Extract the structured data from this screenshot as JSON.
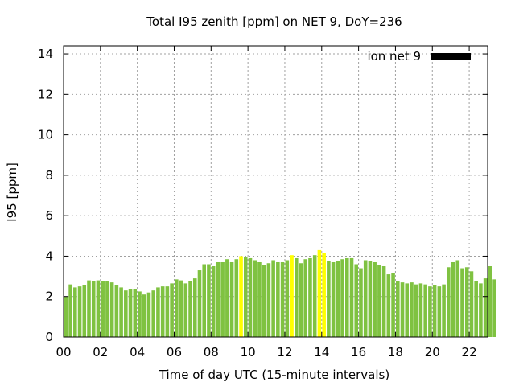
{
  "chart_data": {
    "type": "bar",
    "title": "Total I95 zenith [ppm] on NET 9, DoY=236",
    "xlabel": "Time of day UTC (15-minute intervals)",
    "ylabel": "I95 [ppm]",
    "ylim": [
      0,
      14.4
    ],
    "yticks": [
      0,
      2,
      4,
      6,
      8,
      10,
      12,
      14
    ],
    "xlim": [
      0,
      23
    ],
    "xticks": [
      "00",
      "02",
      "04",
      "06",
      "08",
      "10",
      "12",
      "14",
      "16",
      "18",
      "20",
      "22"
    ],
    "grid": true,
    "legend": {
      "label": "ion net 9",
      "position": "top-right",
      "color": "#000000"
    },
    "colors": {
      "normal": "#7fc241",
      "highlight": "#ffff00"
    },
    "bin_hours": 0.25,
    "highlighted_bins": [
      38,
      49,
      55,
      56
    ],
    "values": [
      2.0,
      2.6,
      2.45,
      2.5,
      2.55,
      2.8,
      2.75,
      2.8,
      2.75,
      2.75,
      2.7,
      2.55,
      2.45,
      2.3,
      2.35,
      2.35,
      2.25,
      2.1,
      2.2,
      2.3,
      2.45,
      2.5,
      2.5,
      2.65,
      2.85,
      2.8,
      2.65,
      2.75,
      2.9,
      3.3,
      3.6,
      3.6,
      3.5,
      3.7,
      3.7,
      3.85,
      3.7,
      3.85,
      4.0,
      3.95,
      3.9,
      3.8,
      3.7,
      3.55,
      3.65,
      3.8,
      3.7,
      3.7,
      3.8,
      4.05,
      3.9,
      3.65,
      3.85,
      3.9,
      4.05,
      4.3,
      4.15,
      3.75,
      3.7,
      3.75,
      3.85,
      3.9,
      3.9,
      3.6,
      3.4,
      3.8,
      3.75,
      3.7,
      3.55,
      3.5,
      3.1,
      3.15,
      2.75,
      2.7,
      2.65,
      2.7,
      2.6,
      2.65,
      2.6,
      2.5,
      2.55,
      2.5,
      2.6,
      3.45,
      3.7,
      3.8,
      3.4,
      3.45,
      3.25,
      2.75,
      2.65,
      2.9,
      3.5,
      2.85
    ]
  }
}
